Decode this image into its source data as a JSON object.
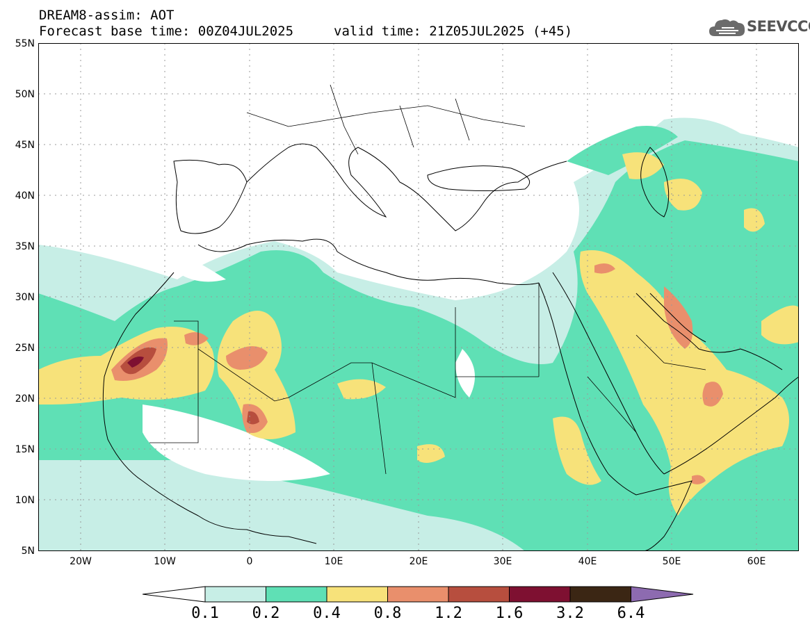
{
  "header": {
    "title": "DREAM8-assim: AOT",
    "base_time": "Forecast base time: 00Z04JUL2025",
    "valid_time": "valid time: 21Z05JUL2025 (+45)"
  },
  "logo": {
    "text": "SEEVCCC",
    "icon": "cloud-icon"
  },
  "axes": {
    "lat_labels": [
      "55N",
      "50N",
      "45N",
      "40N",
      "35N",
      "30N",
      "25N",
      "20N",
      "15N",
      "10N",
      "5N"
    ],
    "lon_labels": [
      "20W",
      "10W",
      "0",
      "10E",
      "20E",
      "30E",
      "40E",
      "50E",
      "60E"
    ],
    "lon_range": [
      -25,
      65
    ],
    "lat_range": [
      5,
      55
    ]
  },
  "colorbar": {
    "labels": [
      "0.1",
      "0.2",
      "0.4",
      "0.8",
      "1.2",
      "1.6",
      "3.2",
      "6.4"
    ],
    "colors": [
      "#ffffff",
      "#c7eee6",
      "#5fe0b5",
      "#f7e27a",
      "#e98f6c",
      "#b74e3e",
      "#7e1031",
      "#3b2614",
      "#8d6bb0"
    ]
  }
}
